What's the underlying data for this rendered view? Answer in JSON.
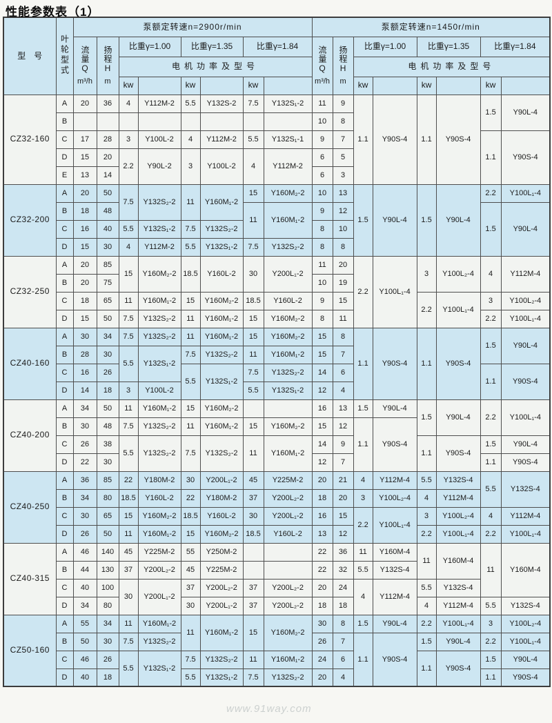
{
  "page": {
    "title": "性能参数表（1）",
    "watermark": "www.91way.com"
  },
  "colors": {
    "band_blue": "#cde6f2",
    "band_white": "#f2f4f1",
    "border": "#4d4d4d",
    "title_text": "#0d0d0d"
  },
  "header": {
    "model_col": "型　号",
    "impeller_col": "叶轮型式",
    "speed_groups": [
      {
        "label": "泵额定转速n=2900r/min"
      },
      {
        "label": "泵额定转速n=1450r/min"
      }
    ],
    "flow_label": "流量Q",
    "flow_unit": "m³/h",
    "head_label": "扬程H",
    "head_unit": "m",
    "gravity_labels": [
      "比重γ=1.00",
      "比重γ=1.35",
      "比重γ=1.84"
    ],
    "motor_label": "电机功率及型号",
    "kw_label": "kw"
  },
  "bands": [
    {
      "model": "CZ32-160",
      "tint": "white",
      "rows": [
        {
          "type": "A",
          "cells": [
            "20",
            "36",
            "4",
            "Y112M-2",
            "5.5",
            "Y132S-2",
            "7.5",
            "Y132S₁-2",
            "11",
            "9",
            {
              "t": "1.1",
              "rs": 5
            },
            {
              "t": "Y90S-4",
              "rs": 5
            },
            {
              "t": "1.1",
              "rs": 5
            },
            {
              "t": "Y90S-4",
              "rs": 5
            },
            {
              "t": "1.5",
              "rs": 2
            },
            {
              "t": "Y90L-4",
              "rs": 2
            }
          ]
        },
        {
          "type": "B",
          "cells": [
            "",
            "",
            "",
            "",
            "",
            "",
            "",
            "",
            "10",
            "8",
            null,
            null,
            null,
            null,
            null,
            null
          ]
        },
        {
          "type": "C",
          "cells": [
            "17",
            "28",
            "3",
            "Y100L-2",
            "4",
            "Y112M-2",
            "5.5",
            "Y132S₁-1",
            "9",
            "7",
            null,
            null,
            null,
            null,
            {
              "t": "1.1",
              "rs": 3
            },
            {
              "t": "Y90S-4",
              "rs": 3
            }
          ]
        },
        {
          "type": "D",
          "cells": [
            "15",
            "20",
            {
              "t": "2.2",
              "rs": 2
            },
            {
              "t": "Y90L-2",
              "rs": 2
            },
            {
              "t": "3",
              "rs": 2
            },
            {
              "t": "Y100L-2",
              "rs": 2
            },
            {
              "t": "4",
              "rs": 2
            },
            {
              "t": "Y112M-2",
              "rs": 2
            },
            "6",
            "5",
            null,
            null,
            null,
            null,
            null,
            null
          ]
        },
        {
          "type": "E",
          "cells": [
            "13",
            "14",
            null,
            null,
            null,
            null,
            null,
            null,
            "6",
            "3",
            null,
            null,
            null,
            null,
            null,
            null
          ]
        }
      ]
    },
    {
      "model": "CZ32-200",
      "tint": "blue",
      "rows": [
        {
          "type": "A",
          "cells": [
            "20",
            "50",
            {
              "t": "7.5",
              "rs": 2
            },
            {
              "t": "Y132S₂-2",
              "rs": 2
            },
            {
              "t": "11",
              "rs": 2
            },
            {
              "t": "Y160M₁-2",
              "rs": 2
            },
            "15",
            "Y160M₂-2",
            "10",
            "13",
            {
              "t": "1.5",
              "rs": 4
            },
            {
              "t": "Y90L-4",
              "rs": 4
            },
            {
              "t": "1.5",
              "rs": 4
            },
            {
              "t": "Y90L-4",
              "rs": 4
            },
            "2.2",
            "Y100L₁-4"
          ]
        },
        {
          "type": "B",
          "cells": [
            "18",
            "48",
            null,
            null,
            null,
            null,
            {
              "t": "11",
              "rs": 2
            },
            {
              "t": "Y160M₁-2",
              "rs": 2
            },
            "9",
            "12",
            null,
            null,
            null,
            null,
            {
              "t": "1.5",
              "rs": 3
            },
            {
              "t": "Y90L-4",
              "rs": 3
            }
          ]
        },
        {
          "type": "C",
          "cells": [
            "16",
            "40",
            "5.5",
            "Y132S₁-2",
            "7.5",
            "Y132S₂-2",
            null,
            null,
            "8",
            "10",
            null,
            null,
            null,
            null,
            null,
            null
          ]
        },
        {
          "type": "D",
          "cells": [
            "15",
            "30",
            "4",
            "Y112M-2",
            "5.5",
            "Y132S₁-2",
            "7.5",
            "Y132S₂-2",
            "8",
            "8",
            null,
            null,
            null,
            null,
            null,
            null
          ]
        }
      ]
    },
    {
      "model": "CZ32-250",
      "tint": "white",
      "rows": [
        {
          "type": "A",
          "cells": [
            "20",
            "85",
            {
              "t": "15",
              "rs": 2
            },
            {
              "t": "Y160M₂-2",
              "rs": 2
            },
            {
              "t": "18.5",
              "rs": 2
            },
            {
              "t": "Y160L-2",
              "rs": 2
            },
            {
              "t": "30",
              "rs": 2
            },
            {
              "t": "Y200L₁-2",
              "rs": 2
            },
            "11",
            "20",
            {
              "t": "2.2",
              "rs": 4
            },
            {
              "t": "Y100L₁-4",
              "rs": 4
            },
            {
              "t": "3",
              "rs": 2
            },
            {
              "t": "Y100L₂-4",
              "rs": 2
            },
            {
              "t": "4",
              "rs": 2
            },
            {
              "t": "Y112M-4",
              "rs": 2
            }
          ]
        },
        {
          "type": "B",
          "cells": [
            "20",
            "75",
            null,
            null,
            null,
            null,
            null,
            null,
            "10",
            "19",
            null,
            null,
            null,
            null,
            null,
            null
          ]
        },
        {
          "type": "C",
          "cells": [
            "18",
            "65",
            "11",
            "Y160M₁-2",
            "15",
            "Y160M₂-2",
            "18.5",
            "Y160L-2",
            "9",
            "15",
            null,
            null,
            {
              "t": "2.2",
              "rs": 2
            },
            {
              "t": "Y100L₁-4",
              "rs": 2
            },
            "3",
            "Y100L₂-4"
          ]
        },
        {
          "type": "D",
          "cells": [
            "15",
            "50",
            "7.5",
            "Y132S₂-2",
            "11",
            "Y160M₁-2",
            "15",
            "Y160M₂-2",
            "8",
            "11",
            null,
            null,
            null,
            null,
            "2.2",
            "Y100L₁-4"
          ]
        }
      ]
    },
    {
      "model": "CZ40-160",
      "tint": "blue",
      "rows": [
        {
          "type": "A",
          "cells": [
            "30",
            "34",
            "7.5",
            "Y132S₂-2",
            "11",
            "Y160M₁-2",
            "15",
            "Y160M₂-2",
            "15",
            "8",
            {
              "t": "1.1",
              "rs": 4
            },
            {
              "t": "Y90S-4",
              "rs": 4
            },
            {
              "t": "1.1",
              "rs": 4
            },
            {
              "t": "Y90S-4",
              "rs": 4
            },
            {
              "t": "1.5",
              "rs": 2
            },
            {
              "t": "Y90L-4",
              "rs": 2
            }
          ]
        },
        {
          "type": "B",
          "cells": [
            "28",
            "30",
            {
              "t": "5.5",
              "rs": 2
            },
            {
              "t": "Y132S₁-2",
              "rs": 2
            },
            "7.5",
            "Y132S₂-2",
            "11",
            "Y160M₁-2",
            "15",
            "7",
            null,
            null,
            null,
            null,
            null,
            null
          ]
        },
        {
          "type": "C",
          "cells": [
            "16",
            "26",
            null,
            null,
            {
              "t": "5.5",
              "rs": 2
            },
            {
              "t": "Y132S₁-2",
              "rs": 2
            },
            "7.5",
            "Y132S₂-2",
            "14",
            "6",
            null,
            null,
            null,
            null,
            {
              "t": "1.1",
              "rs": 2
            },
            {
              "t": "Y90S-4",
              "rs": 2
            }
          ]
        },
        {
          "type": "D",
          "cells": [
            "14",
            "18",
            "3",
            "Y100L-2",
            null,
            null,
            "5.5",
            "Y132S₁-2",
            "12",
            "4",
            null,
            null,
            null,
            null,
            null,
            null
          ]
        }
      ]
    },
    {
      "model": "CZ40-200",
      "tint": "white",
      "rows": [
        {
          "type": "A",
          "cells": [
            "34",
            "50",
            "11",
            "Y160M₁-2",
            "15",
            "Y160M₂-2",
            "",
            "",
            "16",
            "13",
            "1.5",
            "Y90L-4",
            {
              "t": "1.5",
              "rs": 2
            },
            {
              "t": "Y90L-4",
              "rs": 2
            },
            {
              "t": "2.2",
              "rs": 2
            },
            {
              "t": "Y100L₁-4",
              "rs": 2
            }
          ]
        },
        {
          "type": "B",
          "cells": [
            "30",
            "48",
            "7.5",
            "Y132S₂-2",
            "11",
            "Y160M₁-2",
            "15",
            "Y160M₂-2",
            "15",
            "12",
            {
              "t": "1.1",
              "rs": 3
            },
            {
              "t": "Y90S-4",
              "rs": 3
            },
            null,
            null,
            null,
            null
          ]
        },
        {
          "type": "C",
          "cells": [
            "26",
            "38",
            {
              "t": "5.5",
              "rs": 2
            },
            {
              "t": "Y132S₂-2",
              "rs": 2
            },
            {
              "t": "7.5",
              "rs": 2
            },
            {
              "t": "Y132S₂-2",
              "rs": 2
            },
            {
              "t": "11",
              "rs": 2
            },
            {
              "t": "Y160M₁-2",
              "rs": 2
            },
            "14",
            "9",
            null,
            null,
            {
              "t": "1.1",
              "rs": 2
            },
            {
              "t": "Y90S-4",
              "rs": 2
            },
            "1.5",
            "Y90L-4"
          ]
        },
        {
          "type": "D",
          "cells": [
            "22",
            "30",
            null,
            null,
            null,
            null,
            null,
            null,
            "12",
            "7",
            null,
            null,
            null,
            null,
            "1.1",
            "Y90S-4"
          ]
        }
      ]
    },
    {
      "model": "CZ40-250",
      "tint": "blue",
      "rows": [
        {
          "type": "A",
          "cells": [
            "36",
            "85",
            "22",
            "Y180M-2",
            "30",
            "Y200L₁-2",
            "45",
            "Y225M-2",
            "20",
            "21",
            "4",
            "Y112M-4",
            "5.5",
            "Y132S-4",
            {
              "t": "5.5",
              "rs": 2
            },
            {
              "t": "Y132S-4",
              "rs": 2
            }
          ]
        },
        {
          "type": "B",
          "cells": [
            "34",
            "80",
            "18.5",
            "Y160L-2",
            "22",
            "Y180M-2",
            "37",
            "Y200L₂-2",
            "18",
            "20",
            "3",
            "Y100L₂-4",
            "4",
            "Y112M-4",
            null,
            null
          ]
        },
        {
          "type": "C",
          "cells": [
            "30",
            "65",
            "15",
            "Y160M₂-2",
            "18.5",
            "Y160L-2",
            "30",
            "Y200L₁-2",
            "16",
            "15",
            {
              "t": "2.2",
              "rs": 2
            },
            {
              "t": "Y100L₁-4",
              "rs": 2
            },
            "3",
            "Y100L₂-4",
            "4",
            "Y112M-4"
          ]
        },
        {
          "type": "D",
          "cells": [
            "26",
            "50",
            "11",
            "Y160M₁-2",
            "15",
            "Y160M₂-2",
            "18.5",
            "Y160L-2",
            "13",
            "12",
            null,
            null,
            "2.2",
            "Y100L₁-4",
            "2.2",
            "Y100L₁-4"
          ]
        }
      ]
    },
    {
      "model": "CZ40-315",
      "tint": "white",
      "rows": [
        {
          "type": "A",
          "cells": [
            "46",
            "140",
            "45",
            "Y225M-2",
            "55",
            "Y250M-2",
            "",
            "",
            "22",
            "36",
            "11",
            "Y160M-4",
            {
              "t": "11",
              "rs": 2
            },
            {
              "t": "Y160M-4",
              "rs": 2
            },
            {
              "t": "11",
              "rs": 3
            },
            {
              "t": "Y160M-4",
              "rs": 3
            }
          ]
        },
        {
          "type": "B",
          "cells": [
            "44",
            "130",
            "37",
            "Y200L₂-2",
            "45",
            "Y225M-2",
            "",
            "",
            "22",
            "32",
            "5.5",
            "Y132S-4",
            null,
            null,
            null,
            null
          ]
        },
        {
          "type": "C",
          "cells": [
            "40",
            "100",
            {
              "t": "30",
              "rs": 2
            },
            {
              "t": "Y200L₁-2",
              "rs": 2
            },
            "37",
            "Y200L₂-2",
            "37",
            "Y200L₂-2",
            "20",
            "24",
            {
              "t": "4",
              "rs": 2
            },
            {
              "t": "Y112M-4",
              "rs": 2
            },
            "5.5",
            "Y132S-4",
            null,
            null
          ]
        },
        {
          "type": "D",
          "cells": [
            "34",
            "80",
            null,
            null,
            "30",
            "Y200L₁-2",
            "37",
            "Y200L₂-2",
            "18",
            "18",
            null,
            null,
            "4",
            "Y112M-4",
            "5.5",
            "Y132S-4"
          ]
        }
      ]
    },
    {
      "model": "CZ50-160",
      "tint": "blue",
      "rows": [
        {
          "type": "A",
          "cells": [
            "55",
            "34",
            "11",
            "Y160M₁-2",
            {
              "t": "11",
              "rs": 2
            },
            {
              "t": "Y160M₁-2",
              "rs": 2
            },
            {
              "t": "15",
              "rs": 2
            },
            {
              "t": "Y160M₂-2",
              "rs": 2
            },
            "30",
            "8",
            "1.5",
            "Y90L-4",
            "2.2",
            "Y100L₁-4",
            "3",
            "Y100L₂-4"
          ]
        },
        {
          "type": "B",
          "cells": [
            "50",
            "30",
            "7.5",
            "Y132S₂-2",
            null,
            null,
            null,
            null,
            "26",
            "7",
            {
              "t": "1.1",
              "rs": 3
            },
            {
              "t": "Y90S-4",
              "rs": 3
            },
            "1.5",
            "Y90L-4",
            "2.2",
            "Y100L₁-4"
          ]
        },
        {
          "type": "C",
          "cells": [
            "46",
            "26",
            {
              "t": "5.5",
              "rs": 2
            },
            {
              "t": "Y132S₁-2",
              "rs": 2
            },
            "7.5",
            "Y132S₂-2",
            "11",
            "Y160M₁-2",
            "24",
            "6",
            null,
            null,
            {
              "t": "1.1",
              "rs": 2
            },
            {
              "t": "Y90S-4",
              "rs": 2
            },
            "1.5",
            "Y90L-4"
          ]
        },
        {
          "type": "D",
          "cells": [
            "40",
            "18",
            null,
            null,
            "5.5",
            "Y132S₁-2",
            "7.5",
            "Y132S₂-2",
            "20",
            "4",
            null,
            null,
            null,
            null,
            "1.1",
            "Y90S-4"
          ]
        }
      ]
    }
  ]
}
